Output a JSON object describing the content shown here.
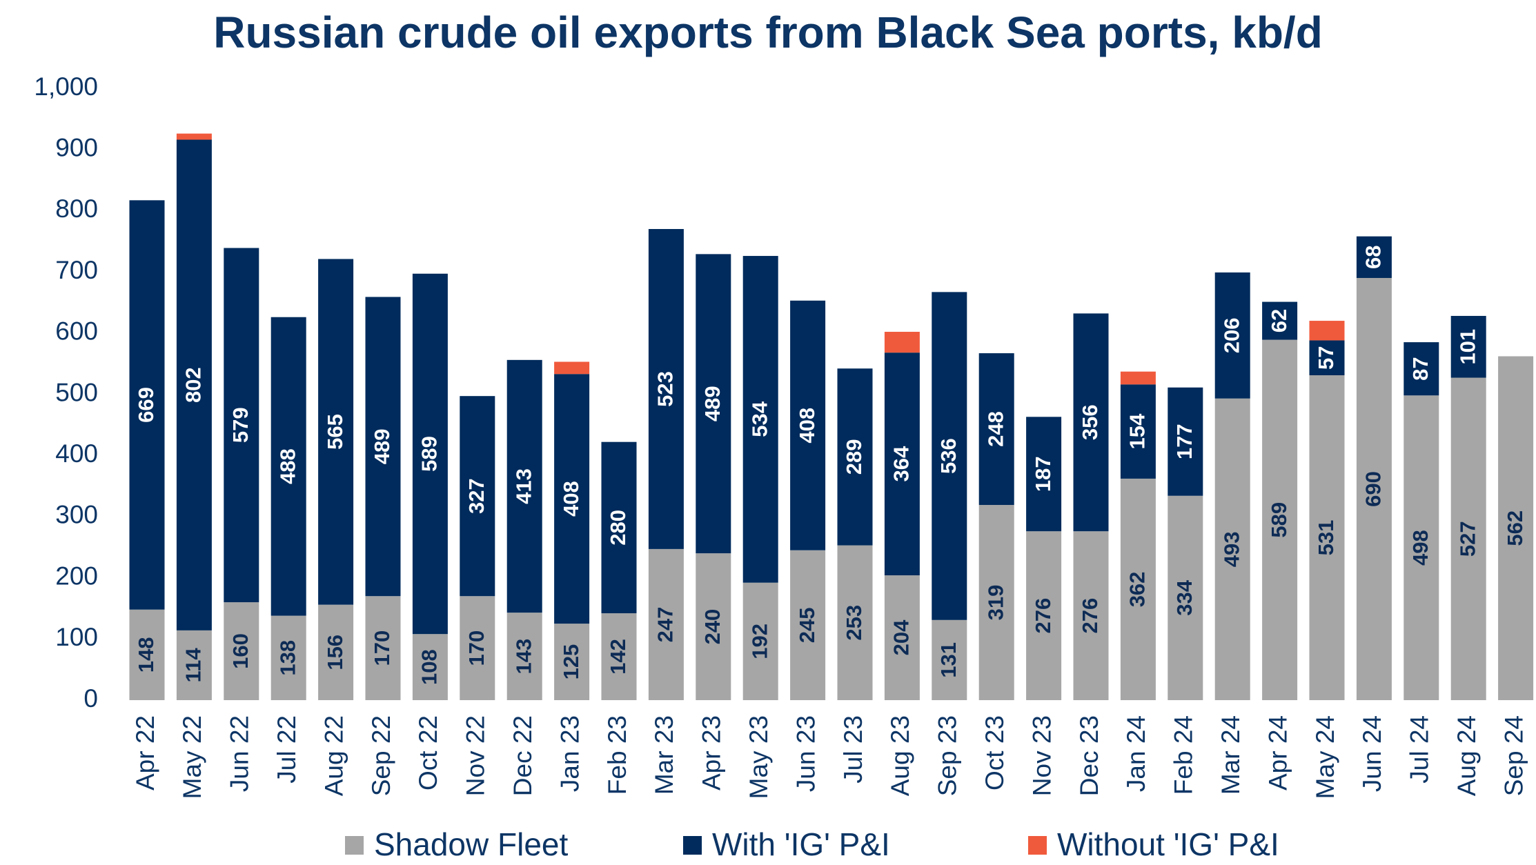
{
  "chart_data": {
    "type": "stacked_bar",
    "title": "Russian crude oil exports from Black Sea ports, kb/d",
    "categories": [
      "Apr 22",
      "May 22",
      "Jun 22",
      "Jul 22",
      "Aug 22",
      "Sep 22",
      "Oct 22",
      "Nov 22",
      "Dec 22",
      "Jan 23",
      "Feb 23",
      "Mar 23",
      "Apr 23",
      "May 23",
      "Jun 23",
      "Jul 23",
      "Aug 23",
      "Sep 23",
      "Oct 23",
      "Nov 23",
      "Dec 23",
      "Jan 24",
      "Feb 24",
      "Mar 24",
      "Apr 24",
      "May 24",
      "Jun 24",
      "Jul 24",
      "Aug 24",
      "Sep 24"
    ],
    "series": [
      {
        "name": "Shadow Fleet",
        "color": "#a6a6a6",
        "data_labels": true,
        "label_color": "#0d2b55",
        "values": [
          148,
          114,
          160,
          138,
          156,
          170,
          108,
          170,
          143,
          125,
          142,
          247,
          240,
          192,
          245,
          253,
          204,
          131,
          319,
          276,
          276,
          362,
          334,
          493,
          589,
          531,
          690,
          498,
          527,
          562
        ]
      },
      {
        "name": "With 'IG' P&I",
        "color": "#002b5c",
        "data_labels": true,
        "label_color": "#ffffff",
        "values": [
          669,
          802,
          579,
          488,
          565,
          489,
          589,
          327,
          413,
          408,
          280,
          523,
          489,
          534,
          408,
          289,
          364,
          536,
          248,
          187,
          356,
          154,
          177,
          206,
          62,
          57,
          68,
          87,
          101,
          null
        ]
      },
      {
        "name": "Without 'IG' P&I",
        "color": "#f05a3c",
        "data_labels": false,
        "values": [
          null,
          10,
          null,
          null,
          null,
          null,
          null,
          null,
          null,
          20,
          null,
          null,
          null,
          null,
          null,
          null,
          34,
          null,
          null,
          null,
          null,
          21,
          null,
          null,
          null,
          32,
          null,
          null,
          null,
          null
        ]
      }
    ],
    "ylim": [
      0,
      1000
    ],
    "yticks": [
      0,
      100,
      200,
      300,
      400,
      500,
      600,
      700,
      800,
      900,
      {
        "value": 1000,
        "label": "1,000"
      }
    ],
    "grid": false,
    "legend": "bottom"
  }
}
